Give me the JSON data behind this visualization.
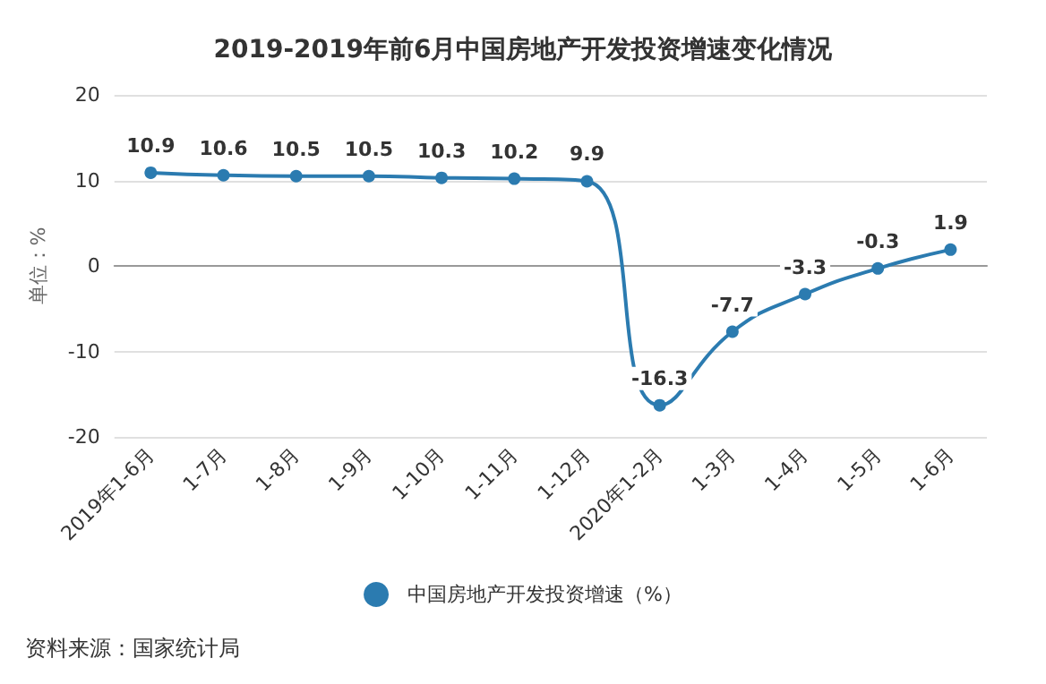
{
  "chart_data": {
    "type": "line",
    "title": "2019-2019年前6月中国房地产开发投资增速变化情况",
    "ylabel": "单位：%",
    "categories": [
      "2019年1-6月",
      "1-7月",
      "1-8月",
      "1-9月",
      "1-10月",
      "1-11月",
      "1-12月",
      "2020年1-2月",
      "1-3月",
      "1-4月",
      "1-5月",
      "1-6月"
    ],
    "series": [
      {
        "name": "中国房地产开发投资增速（%）",
        "color": "#2b7bb0",
        "values": [
          10.9,
          10.6,
          10.5,
          10.5,
          10.3,
          10.2,
          9.9,
          -16.3,
          -7.7,
          -3.3,
          -0.3,
          1.9
        ]
      }
    ],
    "ylim": [
      -20,
      20
    ],
    "yticks": [
      -20,
      -10,
      0,
      10,
      20
    ],
    "grid": "y",
    "legend": "bottom",
    "marker": "circle",
    "data_labels": true,
    "annotations": [
      "资料来源：国家统计局"
    ]
  }
}
